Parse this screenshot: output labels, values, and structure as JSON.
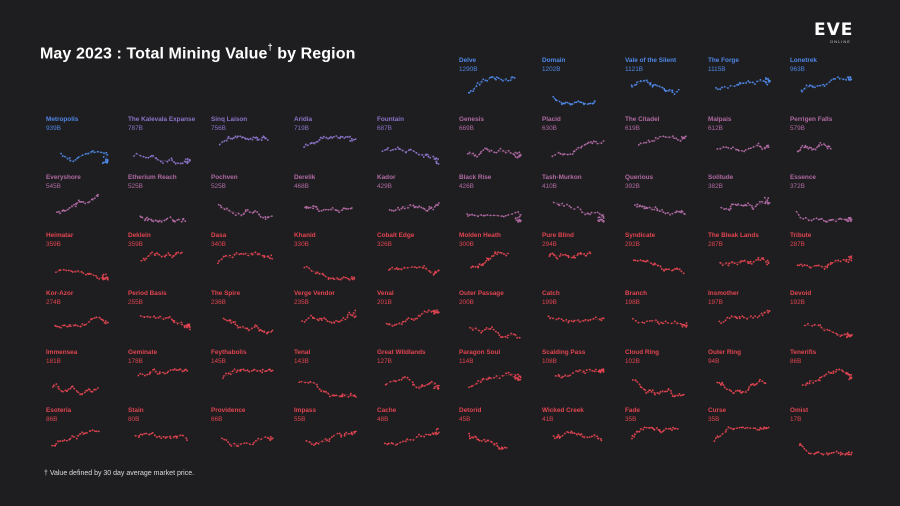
{
  "title_main": "May 2023 : Total Mining Value",
  "title_dagger": "†",
  "title_tail": " by Region",
  "logo": {
    "main": "EVE",
    "sub": "ONLINE"
  },
  "footnote": "† Value defined by 30 day average market price.",
  "colors": {
    "background": "#1e1e20",
    "blue": "#4f87e6",
    "purple": "#8c73c9",
    "mauve": "#b06aa3",
    "red": "#e04450"
  },
  "chart_data": {
    "type": "small-multiples map",
    "title": "May 2023 : Total Mining Value† by Region",
    "unit": "B",
    "regions": [
      {
        "name": "Delve",
        "value": "1290B",
        "color": "blue"
      },
      {
        "name": "Domain",
        "value": "1202B",
        "color": "blue"
      },
      {
        "name": "Vale of the Silent",
        "value": "1121B",
        "color": "blue"
      },
      {
        "name": "The Forge",
        "value": "1115B",
        "color": "blue"
      },
      {
        "name": "Lonetrek",
        "value": "963B",
        "color": "blue"
      },
      {
        "name": "Metropolis",
        "value": "939B",
        "color": "blue"
      },
      {
        "name": "The Kalevala Expanse",
        "value": "787B",
        "color": "purple"
      },
      {
        "name": "Sinq Laison",
        "value": "756B",
        "color": "purple"
      },
      {
        "name": "Aridia",
        "value": "719B",
        "color": "purple"
      },
      {
        "name": "Fountain",
        "value": "687B",
        "color": "purple"
      },
      {
        "name": "Genesis",
        "value": "669B",
        "color": "mauve"
      },
      {
        "name": "Placid",
        "value": "630B",
        "color": "mauve"
      },
      {
        "name": "The Citadel",
        "value": "619B",
        "color": "mauve"
      },
      {
        "name": "Malpais",
        "value": "612B",
        "color": "mauve"
      },
      {
        "name": "Perrigen Falls",
        "value": "579B",
        "color": "mauve"
      },
      {
        "name": "Everyshore",
        "value": "545B",
        "color": "mauve"
      },
      {
        "name": "Etherium Reach",
        "value": "525B",
        "color": "mauve"
      },
      {
        "name": "Pochven",
        "value": "525B",
        "color": "mauve"
      },
      {
        "name": "Derelik",
        "value": "468B",
        "color": "mauve"
      },
      {
        "name": "Kador",
        "value": "429B",
        "color": "mauve"
      },
      {
        "name": "Black Rise",
        "value": "426B",
        "color": "mauve"
      },
      {
        "name": "Tash-Murkon",
        "value": "410B",
        "color": "mauve"
      },
      {
        "name": "Querious",
        "value": "392B",
        "color": "mauve"
      },
      {
        "name": "Solitude",
        "value": "382B",
        "color": "mauve"
      },
      {
        "name": "Essence",
        "value": "372B",
        "color": "mauve"
      },
      {
        "name": "Heimatar",
        "value": "359B",
        "color": "red"
      },
      {
        "name": "Deklein",
        "value": "359B",
        "color": "red"
      },
      {
        "name": "Dasa",
        "value": "340B",
        "color": "red"
      },
      {
        "name": "Khanid",
        "value": "330B",
        "color": "red"
      },
      {
        "name": "Cobalt Edge",
        "value": "326B",
        "color": "red"
      },
      {
        "name": "Molden Heath",
        "value": "300B",
        "color": "red"
      },
      {
        "name": "Pure Blind",
        "value": "294B",
        "color": "red"
      },
      {
        "name": "Syndicate",
        "value": "292B",
        "color": "red"
      },
      {
        "name": "The Bleak Lands",
        "value": "287B",
        "color": "red"
      },
      {
        "name": "Tribute",
        "value": "287B",
        "color": "red"
      },
      {
        "name": "Kor-Azor",
        "value": "274B",
        "color": "red"
      },
      {
        "name": "Period Basis",
        "value": "255B",
        "color": "red"
      },
      {
        "name": "The Spire",
        "value": "236B",
        "color": "red"
      },
      {
        "name": "Verge Vendor",
        "value": "235B",
        "color": "red"
      },
      {
        "name": "Venal",
        "value": "201B",
        "color": "red"
      },
      {
        "name": "Outer Passage",
        "value": "200B",
        "color": "red"
      },
      {
        "name": "Catch",
        "value": "199B",
        "color": "red"
      },
      {
        "name": "Branch",
        "value": "198B",
        "color": "red"
      },
      {
        "name": "Insmother",
        "value": "197B",
        "color": "red"
      },
      {
        "name": "Devoid",
        "value": "192B",
        "color": "red"
      },
      {
        "name": "Immensea",
        "value": "181B",
        "color": "red"
      },
      {
        "name": "Geminate",
        "value": "178B",
        "color": "red"
      },
      {
        "name": "Feythabolis",
        "value": "145B",
        "color": "red"
      },
      {
        "name": "Tenal",
        "value": "143B",
        "color": "red"
      },
      {
        "name": "Great Wildlands",
        "value": "127B",
        "color": "red"
      },
      {
        "name": "Paragon Soul",
        "value": "114B",
        "color": "red"
      },
      {
        "name": "Scalding Pass",
        "value": "108B",
        "color": "red"
      },
      {
        "name": "Cloud Ring",
        "value": "102B",
        "color": "red"
      },
      {
        "name": "Outer Ring",
        "value": "94B",
        "color": "red"
      },
      {
        "name": "Tenerifis",
        "value": "86B",
        "color": "red"
      },
      {
        "name": "Esoteria",
        "value": "86B",
        "color": "red"
      },
      {
        "name": "Stain",
        "value": "80B",
        "color": "red"
      },
      {
        "name": "Providence",
        "value": "66B",
        "color": "red"
      },
      {
        "name": "Impass",
        "value": "55B",
        "color": "red"
      },
      {
        "name": "Cache",
        "value": "48B",
        "color": "red"
      },
      {
        "name": "Detorid",
        "value": "45B",
        "color": "red"
      },
      {
        "name": "Wicked Creek",
        "value": "41B",
        "color": "red"
      },
      {
        "name": "Fade",
        "value": "35B",
        "color": "red"
      },
      {
        "name": "Curse",
        "value": "35B",
        "color": "red"
      },
      {
        "name": "Omist",
        "value": "17B",
        "color": "red"
      }
    ]
  }
}
